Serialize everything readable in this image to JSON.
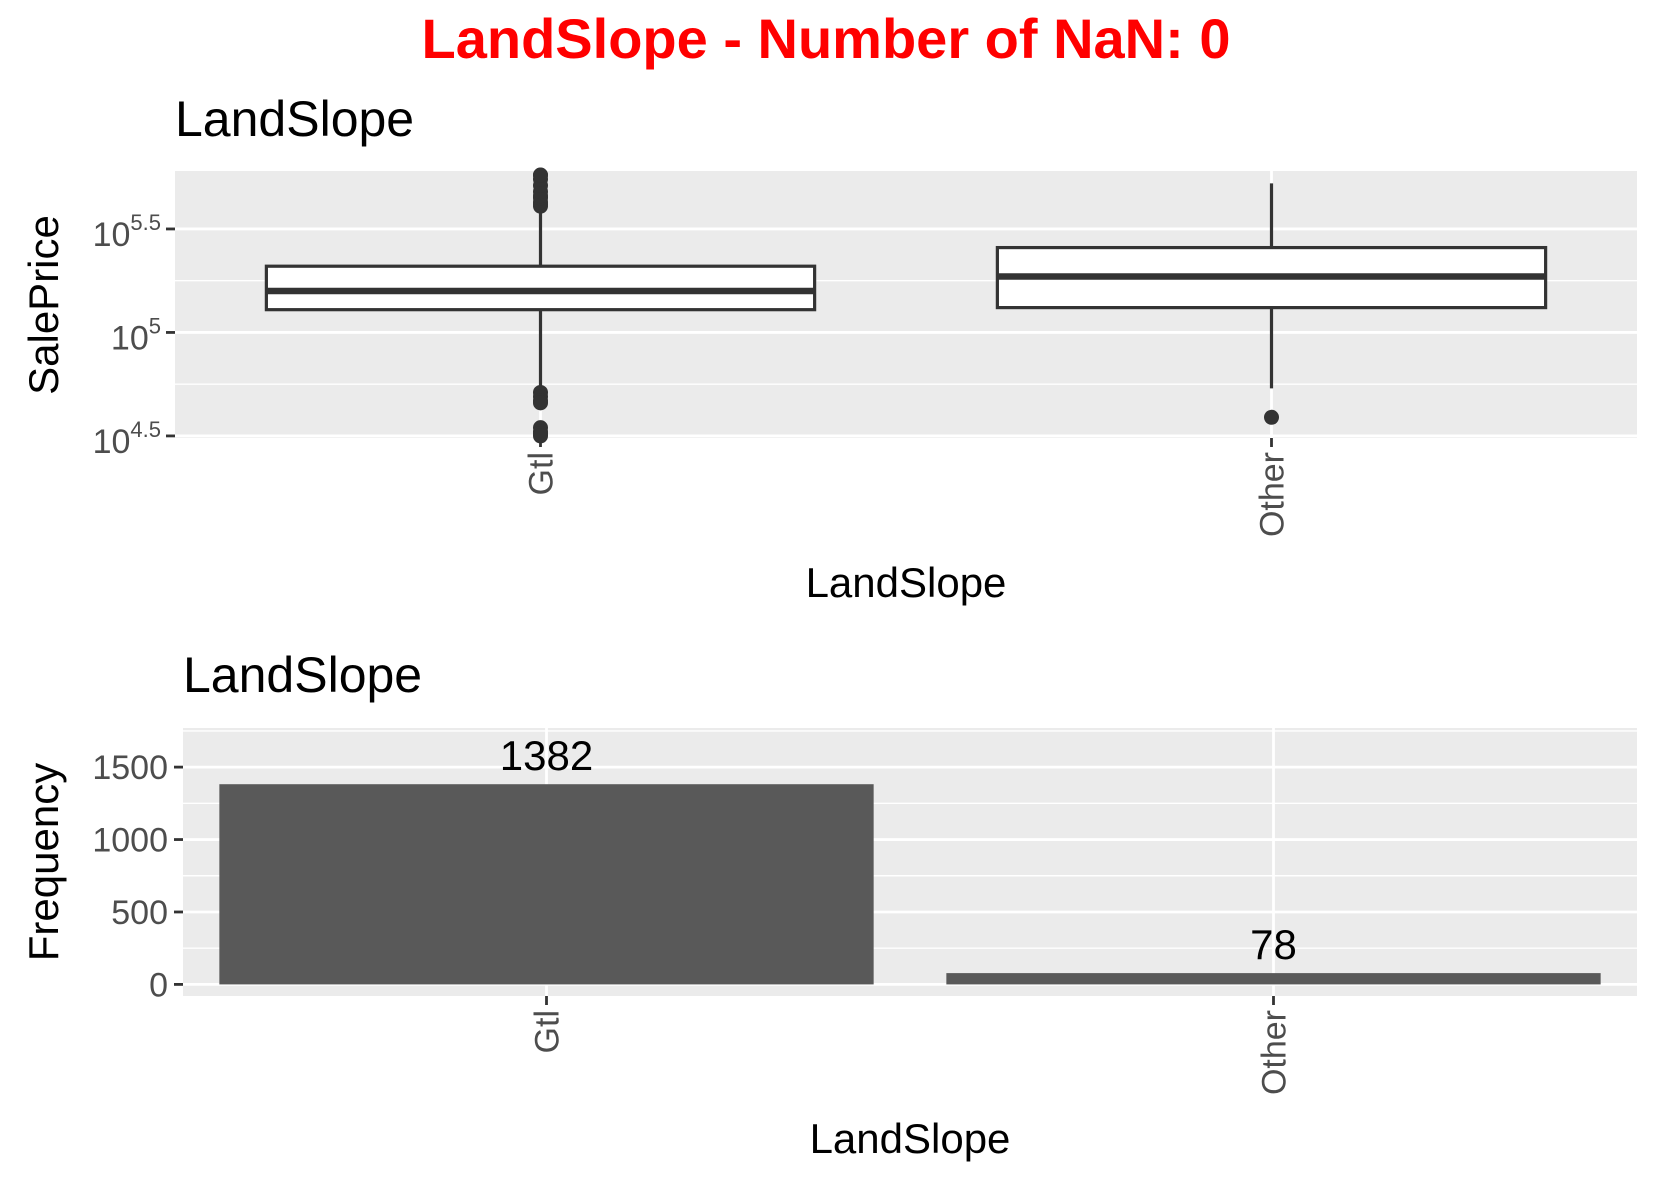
{
  "title": "LandSlope - Number of NaN: 0",
  "colors": {
    "title": "#ff0000",
    "panel_bg": "#ebebeb",
    "grid": "#ffffff",
    "bar_fill": "#595959",
    "box_stroke": "#333333",
    "tick_text": "#4d4d4d"
  },
  "chart_data": [
    {
      "type": "box",
      "title": "LandSlope",
      "xlabel": "LandSlope",
      "ylabel": "SalePrice",
      "y_scale": "log10",
      "ylim_log10": [
        4.49,
        5.78
      ],
      "y_ticks": [
        {
          "base": "10",
          "exp": "5.5",
          "value_log10": 5.5
        },
        {
          "base": "10",
          "exp": "5",
          "value_log10": 5.0
        },
        {
          "base": "10",
          "exp": "4.5",
          "value_log10": 4.5
        }
      ],
      "categories": [
        "Gtl",
        "Other"
      ],
      "boxes": [
        {
          "category": "Gtl",
          "q1_log10": 5.11,
          "median_log10": 5.2,
          "q3_log10": 5.32,
          "whisker_low_log10": 4.63,
          "whisker_high_log10": 5.8,
          "outliers_log10": [
            4.71,
            4.69,
            4.67,
            4.66,
            4.54,
            4.52,
            4.51,
            4.5,
            5.61,
            5.62,
            5.63,
            5.65,
            5.66,
            5.68,
            5.71,
            5.74,
            5.76,
            5.8
          ]
        },
        {
          "category": "Other",
          "q1_log10": 5.12,
          "median_log10": 5.27,
          "q3_log10": 5.41,
          "whisker_low_log10": 4.73,
          "whisker_high_log10": 5.72,
          "outliers_log10": [
            4.59
          ]
        }
      ]
    },
    {
      "type": "bar",
      "title": "LandSlope",
      "xlabel": "LandSlope",
      "ylabel": "Frequency",
      "categories": [
        "Gtl",
        "Other"
      ],
      "values": [
        1382,
        78
      ],
      "value_labels": [
        "1382",
        "78"
      ],
      "ylim": [
        -80,
        1770
      ],
      "y_ticks": [
        0,
        500,
        1000,
        1500
      ],
      "y_tick_labels": [
        "0",
        "500",
        "1000",
        "1500"
      ]
    }
  ]
}
